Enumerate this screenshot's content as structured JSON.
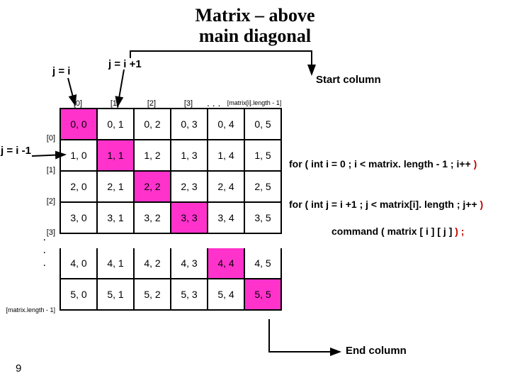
{
  "title_line1": "Matrix – above",
  "title_line2": "main diagonal",
  "slide_number": "9",
  "annotations": {
    "j_eq_i": "j = i",
    "j_eq_i_plus1": "j = i +1",
    "j_eq_i_minus1": "j = i -1",
    "start_col": "Start column",
    "end_col": "End column"
  },
  "col_headers": [
    "[0]",
    "[1]",
    "[2]",
    "[3]",
    ". . .",
    "[matrix[i].length - 1]"
  ],
  "row_headers": [
    "[0]",
    "[1]",
    "[2]",
    "[3]",
    ". . .",
    "[matrix.length - 1]"
  ],
  "matrix": [
    [
      "0, 0",
      "0, 1",
      "0, 2",
      "0, 3",
      "0, 4",
      "0, 5"
    ],
    [
      "1, 0",
      "1, 1",
      "1, 2",
      "1, 3",
      "1, 4",
      "1, 5"
    ],
    [
      "2, 0",
      "2, 1",
      "2, 2",
      "2, 3",
      "2, 4",
      "2, 5"
    ],
    [
      "3, 0",
      "3, 1",
      "3, 2",
      "3, 3",
      "3, 4",
      "3, 5"
    ],
    [
      "4, 0",
      "4, 1",
      "4, 2",
      "4, 3",
      "4, 4",
      "4, 5"
    ],
    [
      "5, 0",
      "5, 1",
      "5, 2",
      "5, 3",
      "5, 4",
      "5, 5"
    ]
  ],
  "diagonal_cells": [
    [
      0,
      0
    ],
    [
      1,
      1
    ],
    [
      2,
      2
    ],
    [
      3,
      3
    ],
    [
      4,
      4
    ],
    [
      5,
      5
    ]
  ],
  "code": {
    "loop_i_pre": "for ( int i = 0 ; i < matrix. length - 1 ; i++",
    "loop_i_close": " )",
    "loop_j_pre": "for ( int j = i +1 ; j < matrix[i]. length ; j++",
    "loop_j_close": " )",
    "cmd_pre": "command ( matrix [ i ] [ j ]  ",
    "cmd_close": ") ;"
  },
  "colors": {
    "diag": "#ff33cc",
    "paren": "#c00000",
    "arrow": "#000000"
  }
}
